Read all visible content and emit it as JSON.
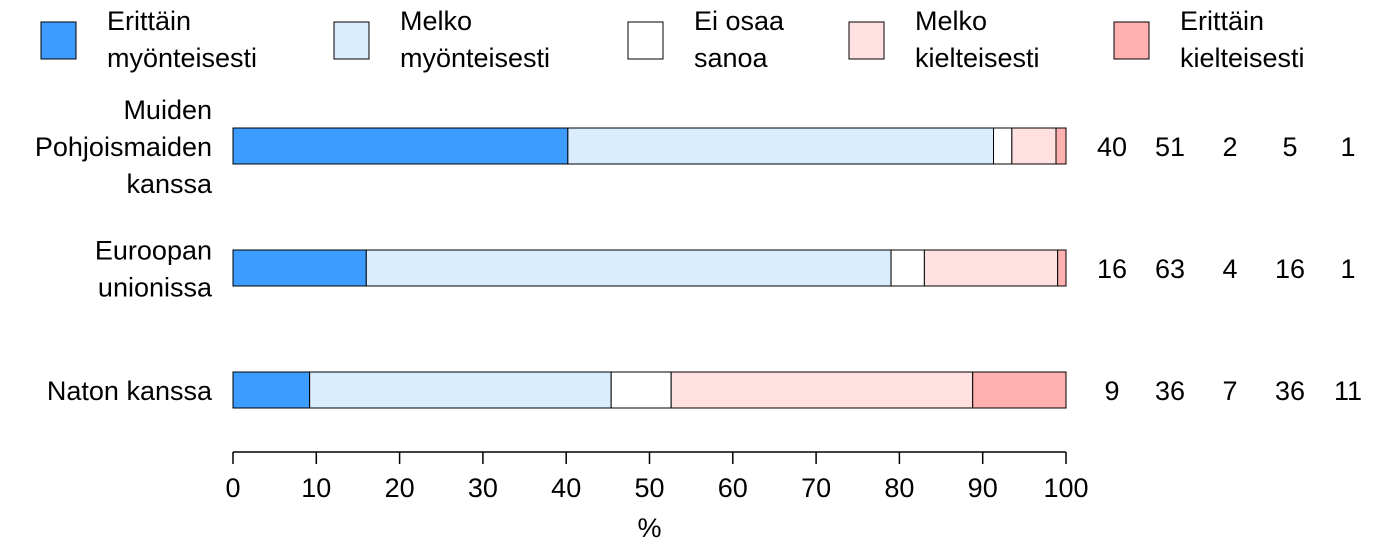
{
  "chart_data": {
    "type": "bar",
    "orientation": "horizontal",
    "stacked": true,
    "xlabel": "%",
    "xlim": [
      0,
      100
    ],
    "xticks": [
      "0",
      "10",
      "20",
      "30",
      "40",
      "50",
      "60",
      "70",
      "80",
      "90",
      "100"
    ],
    "grid": false,
    "legend_position": "top",
    "categories": [
      [
        "Muiden",
        "Pohjoismaiden",
        "kanssa"
      ],
      [
        "Euroopan",
        "unionissa"
      ],
      [
        "Naton kanssa"
      ]
    ],
    "series": [
      {
        "name": [
          "Erittäin",
          "myönteisesti"
        ],
        "color": "#3d9cff",
        "values": [
          40.2,
          16.0,
          9.2
        ]
      },
      {
        "name": [
          "Melko",
          "myönteisesti"
        ],
        "color": "#d9edff",
        "values": [
          51.1,
          63.0,
          36.2
        ]
      },
      {
        "name": [
          "Ei osaa",
          "sanoa"
        ],
        "color": "#ffffff",
        "values": [
          2.2,
          4.0,
          7.2
        ]
      },
      {
        "name": [
          "Melko",
          "kielteisesti"
        ],
        "color": "#ffe1e1",
        "values": [
          5.3,
          16.0,
          36.2
        ]
      },
      {
        "name": [
          "Erittäin",
          "kielteisesti"
        ],
        "color": "#ffb0b0",
        "values": [
          1.2,
          1.0,
          11.2
        ]
      }
    ],
    "value_labels": [
      [
        "40",
        "51",
        "2",
        "5",
        "1"
      ],
      [
        "16",
        "63",
        "4",
        "16",
        "1"
      ],
      [
        "9",
        "36",
        "7",
        "36",
        "11"
      ]
    ]
  }
}
